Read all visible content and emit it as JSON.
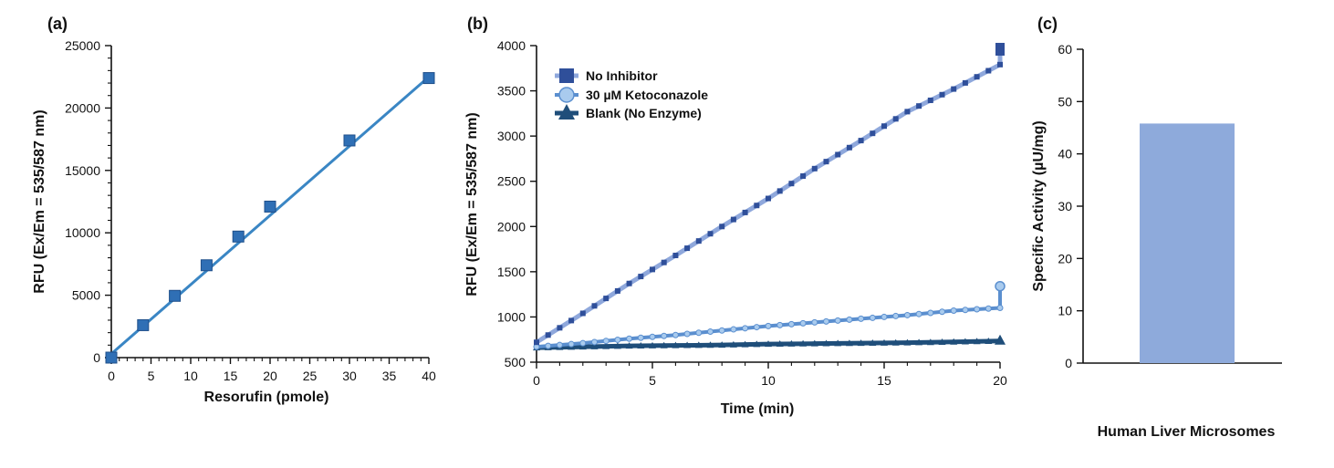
{
  "chart_data": [
    {
      "panel_label": "(a)",
      "type": "scatter",
      "xlabel": "Resorufin (pmole)",
      "ylabel": "RFU (Ex/Em = 535/587 nm)",
      "xlim": [
        0,
        40
      ],
      "ylim": [
        0,
        25000
      ],
      "x_ticks": [
        0,
        5,
        10,
        15,
        20,
        25,
        30,
        35,
        40
      ],
      "y_ticks": [
        0,
        5000,
        10000,
        15000,
        20000,
        25000
      ],
      "grid": false,
      "series": [
        {
          "x": [
            0,
            4,
            8,
            12,
            16,
            20,
            30,
            40
          ],
          "y": [
            0,
            2600,
            4950,
            7400,
            9700,
            12100,
            17400,
            22400
          ],
          "marker": "square",
          "color": "#2f6fb5",
          "line_color": "#3a86c4",
          "fit_line": [
            [
              0,
              300
            ],
            [
              40,
              22500
            ]
          ]
        }
      ]
    },
    {
      "panel_label": "(b)",
      "type": "line",
      "xlabel": "Time (min)",
      "ylabel": "RFU (Ex/Em = 535/587 nm)",
      "xlim": [
        0,
        20
      ],
      "ylim": [
        500,
        4000
      ],
      "x_ticks": [
        0,
        5,
        10,
        15,
        20
      ],
      "y_ticks": [
        500,
        1000,
        1500,
        2000,
        2500,
        3000,
        3500,
        4000
      ],
      "grid": false,
      "legend_position": "top-left",
      "series": [
        {
          "name": "No Inhibitor",
          "x": [
            0,
            2,
            4,
            6,
            8,
            10,
            12,
            14,
            16,
            18,
            20
          ],
          "y": [
            720,
            1040,
            1370,
            1680,
            2000,
            2310,
            2640,
            2950,
            3270,
            3520,
            3790
          ],
          "marker": "square",
          "color": "#2f4f9a",
          "line_color": "#8fa8dc",
          "end_value": 3980
        },
        {
          "name": "30 µM Ketoconazole",
          "x": [
            0,
            2,
            4,
            6,
            8,
            10,
            12,
            14,
            16,
            18,
            20
          ],
          "y": [
            670,
            710,
            760,
            800,
            850,
            900,
            940,
            980,
            1020,
            1070,
            1100
          ],
          "marker": "circle",
          "color": "#a9cbee",
          "line_color": "#5b8fcf",
          "end_value": 1340
        },
        {
          "name": "Blank (No Enzyme)",
          "x": [
            0,
            2,
            4,
            6,
            8,
            10,
            12,
            14,
            16,
            18,
            20
          ],
          "y": [
            660,
            670,
            680,
            685,
            690,
            700,
            705,
            710,
            715,
            725,
            735
          ],
          "marker": "triangle",
          "color": "#1f4e7a",
          "line_color": "#1f4e7a"
        }
      ]
    },
    {
      "panel_label": "(c)",
      "type": "bar",
      "xlabel": "Human Liver Microsomes",
      "ylabel": "Specific Activity (µU/mg)",
      "ylim": [
        0,
        60
      ],
      "y_ticks": [
        0,
        10,
        20,
        30,
        40,
        50,
        60
      ],
      "grid": false,
      "categories": [
        ""
      ],
      "values": [
        45.8
      ],
      "color": "#8eaadb"
    }
  ]
}
